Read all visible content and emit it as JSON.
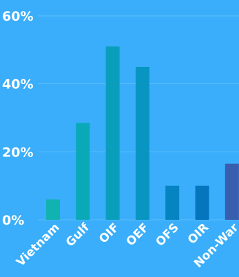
{
  "chart_data": {
    "type": "bar",
    "categories": [
      "Vietnam",
      "Gulf",
      "OIF",
      "OEF",
      "OFS",
      "OIR",
      "Non-War"
    ],
    "values": [
      6,
      28.5,
      51,
      45,
      10,
      10,
      16.5
    ],
    "bar_colors": [
      "#10b3b0",
      "#0aa9b8",
      "#0a9ebd",
      "#0895c2",
      "#0684c2",
      "#0576bd",
      "#3a5eae"
    ],
    "y_ticks": [
      "0%",
      "20%",
      "40%",
      "60%"
    ],
    "y_tick_values": [
      0,
      20,
      40,
      60
    ],
    "ylim": [
      0,
      60
    ],
    "grid": true,
    "title": "",
    "xlabel": "",
    "ylabel": ""
  },
  "colors": {
    "background": "#3aaefa",
    "text": "#ffffff",
    "grid": "#5cbdfb"
  }
}
